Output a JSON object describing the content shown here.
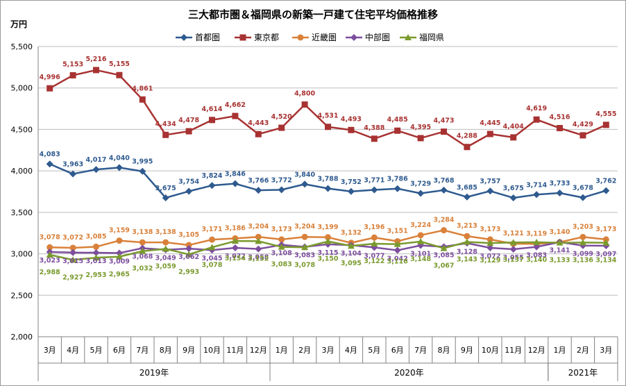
{
  "chart_data": {
    "type": "line",
    "title": "三大都市圏＆福岡県の新築一戸建て住宅平均価格推移",
    "ylabel": "万円",
    "ylim": [
      2000,
      5500
    ],
    "yticks": [
      "2,000",
      "2,500",
      "3,000",
      "3,500",
      "4,000",
      "4,500",
      "5,000",
      "5,500"
    ],
    "ytick_values": [
      2000,
      2500,
      3000,
      3500,
      4000,
      4500,
      5000,
      5500
    ],
    "categories": [
      "3月",
      "4月",
      "5月",
      "6月",
      "7月",
      "8月",
      "9月",
      "10月",
      "11月",
      "12月",
      "1月",
      "2月",
      "3月",
      "4月",
      "5月",
      "6月",
      "7月",
      "8月",
      "9月",
      "10月",
      "11月",
      "12月",
      "1月",
      "2月",
      "3月"
    ],
    "year_groups": [
      {
        "label": "2019年",
        "start": 0,
        "end": 9
      },
      {
        "label": "2020年",
        "start": 10,
        "end": 21
      },
      {
        "label": "2021年",
        "start": 22,
        "end": 24
      }
    ],
    "grid": true,
    "legend_position": "top",
    "series": [
      {
        "name": "首都圏",
        "color": "#2E5A8F",
        "marker": "diamond",
        "values": [
          4083,
          3963,
          4017,
          4040,
          3995,
          3675,
          3754,
          3824,
          3846,
          3766,
          3772,
          3840,
          3788,
          3752,
          3771,
          3786,
          3729,
          3768,
          3685,
          3757,
          3675,
          3714,
          3733,
          3678,
          3762
        ]
      },
      {
        "name": "東京都",
        "color": "#A83232",
        "marker": "square",
        "values": [
          4996,
          5153,
          5216,
          5155,
          4861,
          4434,
          4478,
          4614,
          4662,
          4443,
          4520,
          4800,
          4531,
          4493,
          4388,
          4485,
          4395,
          4473,
          4288,
          4445,
          4404,
          4619,
          4516,
          4429,
          4555
        ]
      },
      {
        "name": "近畿圏",
        "color": "#D9813A",
        "marker": "circle",
        "values": [
          3078,
          3072,
          3085,
          3159,
          3138,
          3138,
          3105,
          3171,
          3186,
          3204,
          3173,
          3204,
          3199,
          3132,
          3196,
          3151,
          3224,
          3284,
          3213,
          3173,
          3121,
          3119,
          3140,
          3203,
          3173
        ]
      },
      {
        "name": "中部圏",
        "color": "#7D4E9E",
        "marker": "diamond",
        "values": [
          3023,
          3015,
          3013,
          3009,
          3068,
          3049,
          3062,
          3045,
          3072,
          3058,
          3108,
          3083,
          3115,
          3104,
          3077,
          3042,
          3101,
          3085,
          3128,
          3072,
          3055,
          3083,
          3141,
          3099,
          3097
        ]
      },
      {
        "name": "福岡県",
        "color": "#7A9A2E",
        "marker": "triangle",
        "values": [
          2988,
          2927,
          2953,
          2965,
          3032,
          3059,
          2993,
          3078,
          3154,
          3152,
          3083,
          3078,
          3150,
          3095,
          3122,
          3116,
          3148,
          3067,
          3143,
          3129,
          3137,
          3140,
          3133,
          3136,
          3134
        ]
      }
    ]
  }
}
